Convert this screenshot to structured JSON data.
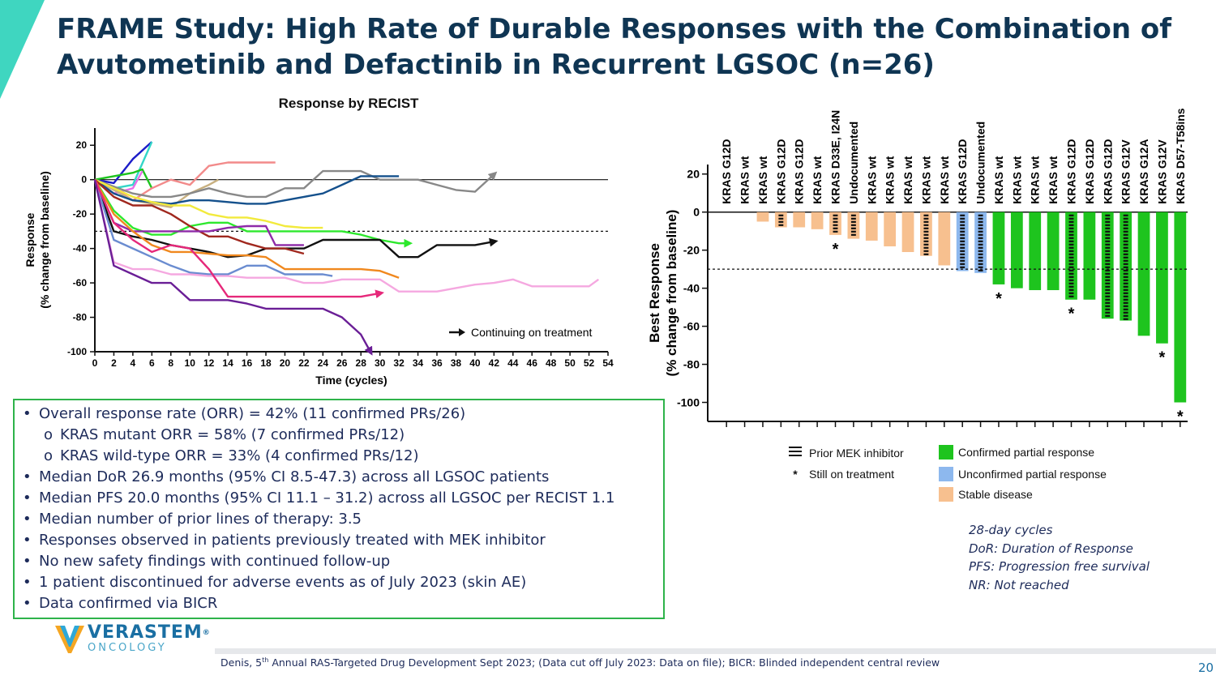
{
  "title": "FRAME Study: High Rate of Durable Responses with the Combination of Avutometinib and Defactinib in Recurrent LGSOC (n=26)",
  "colors": {
    "title": "#0f3553",
    "confirmed": "#1ec41e",
    "unconfirmed": "#8db8ee",
    "stable": "#f7c08f",
    "box_border": "#2eb34a"
  },
  "chart_data": [
    {
      "type": "line",
      "title": "Response by RECIST",
      "xlabel": "Time (cycles)",
      "ylabel_line1": "Response",
      "ylabel_line2": "(% change from baseline)",
      "xlim": [
        0,
        54
      ],
      "ylim": [
        -100,
        30
      ],
      "x_ticks": [
        0,
        2,
        4,
        6,
        8,
        10,
        12,
        14,
        16,
        18,
        20,
        22,
        24,
        26,
        28,
        30,
        32,
        34,
        36,
        38,
        40,
        42,
        44,
        46,
        48,
        50,
        52,
        54
      ],
      "y_ticks": [
        20,
        0,
        -20,
        -40,
        -60,
        -80,
        -100
      ],
      "reference_lines": [
        0,
        -30
      ],
      "legend_text": "Continuing on treatment",
      "series": [
        {
          "color": "#1c1cc8",
          "x": [
            0,
            2,
            4,
            6
          ],
          "y": [
            0,
            -2,
            12,
            22
          ],
          "arrow": false
        },
        {
          "color": "#33d6c8",
          "x": [
            0,
            2,
            4,
            6
          ],
          "y": [
            0,
            -5,
            -3,
            22
          ],
          "arrow": false
        },
        {
          "color": "#1ec41e",
          "x": [
            0,
            2,
            4,
            5,
            6
          ],
          "y": [
            0,
            2,
            4,
            6,
            -5
          ],
          "arrow": false
        },
        {
          "color": "#f28a8a",
          "x": [
            0,
            2,
            4,
            6,
            8,
            10,
            12,
            14,
            16,
            18,
            19
          ],
          "y": [
            0,
            -5,
            -12,
            -5,
            0,
            -3,
            8,
            10,
            10,
            10,
            10
          ],
          "arrow": false
        },
        {
          "color": "#e86fe8",
          "x": [
            0,
            2,
            4,
            5
          ],
          "y": [
            0,
            -8,
            -5,
            5
          ],
          "arrow": false
        },
        {
          "color": "#c8b080",
          "x": [
            0,
            2,
            4,
            6,
            8,
            10,
            12,
            13
          ],
          "y": [
            0,
            -6,
            -12,
            -14,
            -16,
            -8,
            -3,
            0
          ],
          "arrow": false
        },
        {
          "color": "#888888",
          "x": [
            0,
            2,
            4,
            6,
            8,
            10,
            12,
            14,
            16,
            18,
            20,
            22,
            24,
            26,
            28,
            30,
            32,
            34,
            36,
            38,
            40,
            42
          ],
          "y": [
            0,
            -4,
            -8,
            -10,
            -10,
            -8,
            -5,
            -8,
            -10,
            -10,
            -5,
            -5,
            5,
            5,
            5,
            0,
            0,
            0,
            -3,
            -6,
            -7,
            3
          ],
          "arrow": true
        },
        {
          "color": "#14508c",
          "x": [
            0,
            2,
            4,
            6,
            8,
            10,
            12,
            14,
            16,
            18,
            20,
            22,
            24,
            26,
            28,
            30,
            32
          ],
          "y": [
            0,
            -8,
            -12,
            -13,
            -14,
            -12,
            -12,
            -13,
            -14,
            -14,
            -12,
            -10,
            -8,
            -3,
            2,
            2,
            2
          ],
          "arrow": false
        },
        {
          "color": "#f2ea3c",
          "x": [
            0,
            2,
            4,
            6,
            8,
            10,
            12,
            14,
            16,
            18,
            20,
            22,
            24
          ],
          "y": [
            0,
            -5,
            -10,
            -13,
            -15,
            -15,
            -20,
            -22,
            -22,
            -24,
            -27,
            -28,
            -28
          ],
          "arrow": false
        },
        {
          "color": "#2de82d",
          "x": [
            0,
            2,
            4,
            6,
            8,
            10,
            12,
            14,
            16,
            18,
            20,
            22,
            24,
            26,
            28,
            30,
            32,
            33
          ],
          "y": [
            0,
            -18,
            -28,
            -32,
            -32,
            -27,
            -25,
            -25,
            -30,
            -30,
            -30,
            -30,
            -30,
            -30,
            -32,
            -35,
            -37,
            -37
          ],
          "arrow": true
        },
        {
          "color": "#111111",
          "x": [
            0,
            2,
            4,
            6,
            8,
            10,
            12,
            14,
            16,
            18,
            20,
            22,
            24,
            26,
            28,
            30,
            32,
            34,
            36,
            38,
            40,
            42
          ],
          "y": [
            0,
            -30,
            -33,
            -35,
            -38,
            -40,
            -42,
            -45,
            -44,
            -40,
            -40,
            -40,
            -35,
            -35,
            -35,
            -35,
            -45,
            -45,
            -38,
            -38,
            -38,
            -36
          ],
          "arrow": true
        },
        {
          "color": "#a0281e",
          "x": [
            0,
            2,
            4,
            6,
            8,
            10,
            12,
            14,
            16,
            18,
            20,
            22
          ],
          "y": [
            0,
            -10,
            -15,
            -15,
            -20,
            -27,
            -33,
            -33,
            -37,
            -40,
            -40,
            -43
          ],
          "arrow": false
        },
        {
          "color": "#8e2aa8",
          "x": [
            0,
            2,
            4,
            6,
            8,
            10,
            12,
            14,
            16,
            18,
            19,
            20,
            22
          ],
          "y": [
            0,
            -25,
            -30,
            -30,
            -30,
            -30,
            -30,
            -28,
            -27,
            -27,
            -38,
            -38,
            -38
          ],
          "arrow": false
        },
        {
          "color": "#f0881e",
          "x": [
            0,
            2,
            4,
            6,
            8,
            10,
            12,
            14,
            16,
            18,
            20,
            22,
            24,
            26,
            28,
            30,
            32
          ],
          "y": [
            0,
            -20,
            -30,
            -38,
            -42,
            -42,
            -43,
            -44,
            -44,
            -45,
            -52,
            -52,
            -52,
            -52,
            -52,
            -53,
            -57
          ],
          "arrow": false
        },
        {
          "color": "#6a8cd0",
          "x": [
            0,
            2,
            4,
            6,
            8,
            10,
            12,
            14,
            16,
            18,
            20,
            22,
            24,
            25
          ],
          "y": [
            0,
            -35,
            -40,
            -45,
            -50,
            -54,
            -55,
            -55,
            -50,
            -50,
            -55,
            -55,
            -55,
            -56
          ],
          "arrow": false
        },
        {
          "color": "#f5a8e0",
          "x": [
            0,
            2,
            4,
            6,
            8,
            10,
            12,
            14,
            16,
            18,
            20,
            22,
            24,
            26,
            28,
            30,
            32,
            34,
            36,
            38,
            40,
            42,
            44,
            46,
            48,
            50,
            52,
            53
          ],
          "y": [
            0,
            -48,
            -52,
            -52,
            -55,
            -55,
            -56,
            -56,
            -57,
            -57,
            -57,
            -60,
            -60,
            -58,
            -58,
            -58,
            -65,
            -65,
            -65,
            -63,
            -61,
            -60,
            -58,
            -62,
            -62,
            -62,
            -62,
            -58
          ],
          "arrow": false
        },
        {
          "color": "#e6287a",
          "x": [
            0,
            2,
            4,
            6,
            8,
            10,
            12,
            14,
            16,
            18,
            20,
            22,
            24,
            26,
            28,
            30
          ],
          "y": [
            0,
            -25,
            -35,
            -42,
            -38,
            -40,
            -52,
            -68,
            -68,
            -68,
            -68,
            -68,
            -68,
            -68,
            -68,
            -66
          ],
          "arrow": true
        },
        {
          "color": "#6a1e96",
          "x": [
            0,
            2,
            4,
            6,
            8,
            10,
            12,
            14,
            16,
            18,
            20,
            22,
            24,
            26,
            28,
            29
          ],
          "y": [
            0,
            -50,
            -55,
            -60,
            -60,
            -70,
            -70,
            -70,
            -72,
            -75,
            -75,
            -75,
            -75,
            -80,
            -90,
            -100
          ],
          "arrow": true
        }
      ]
    },
    {
      "type": "bar",
      "ylabel_line1": "Best  Response",
      "ylabel_line2": "(% change from baseline)",
      "ylim": [
        -110,
        25
      ],
      "y_ticks": [
        20,
        0,
        -20,
        -40,
        -60,
        -80,
        -100
      ],
      "reference_line": -30,
      "categories": [
        "KRAS G12D",
        "KRAS wt",
        "KRAS wt",
        "KRAS G12D",
        "KRAS G12D",
        "KRAS wt",
        "KRAS D33E, I24N",
        "Undocumented",
        "KRAS wt",
        "KRAS wt",
        "KRAS wt",
        "KRAS wt",
        "KRAS wt",
        "KRAS G12D",
        "Undocumented",
        "KRAS wt",
        "KRAS wt",
        "KRAS wt",
        "KRAS wt",
        "KRAS G12D",
        "KRAS G12D",
        "KRAS G12D",
        "KRAS G12V",
        "KRAS G12A",
        "KRAS G12V",
        "KRAS D57-T58ins"
      ],
      "values": [
        0,
        0,
        -5,
        -8,
        -8,
        -9,
        -12,
        -14,
        -15,
        -18,
        -21,
        -23,
        -28,
        -31,
        -32,
        -38,
        -40,
        -41,
        -41,
        -46,
        -46,
        -56,
        -57,
        -65,
        -69,
        -100
      ],
      "status": [
        "stable",
        "stable",
        "stable",
        "stable",
        "stable",
        "stable",
        "stable",
        "stable",
        "stable",
        "stable",
        "stable",
        "stable",
        "stable",
        "unconfirmed",
        "unconfirmed",
        "confirmed",
        "confirmed",
        "confirmed",
        "confirmed",
        "confirmed",
        "confirmed",
        "confirmed",
        "confirmed",
        "confirmed",
        "confirmed",
        "confirmed"
      ],
      "prior_mek": [
        false,
        false,
        false,
        true,
        false,
        false,
        true,
        true,
        false,
        false,
        false,
        true,
        false,
        true,
        true,
        false,
        false,
        false,
        false,
        true,
        false,
        true,
        true,
        false,
        false,
        false
      ],
      "on_treatment": [
        false,
        false,
        false,
        false,
        false,
        false,
        true,
        false,
        false,
        false,
        false,
        false,
        false,
        false,
        false,
        true,
        false,
        false,
        false,
        true,
        false,
        false,
        false,
        false,
        true,
        true
      ],
      "legend": {
        "prior_mek": "Prior MEK inhibitor",
        "still_on": "Still on treatment",
        "confirmed": "Confirmed partial response",
        "unconfirmed": "Unconfirmed partial response",
        "stable": "Stable disease"
      }
    }
  ],
  "bullets": [
    {
      "text": "Overall response rate (ORR) = 42% (11 confirmed PRs/26)",
      "sub": false
    },
    {
      "text": "KRAS mutant ORR = 58% (7 confirmed PRs/12)",
      "sub": true
    },
    {
      "text": "KRAS wild-type ORR = 33% (4 confirmed PRs/12)",
      "sub": true
    },
    {
      "text": "Median DoR 26.9 months (95% CI 8.5-47.3) across all LGSOC patients",
      "sub": false
    },
    {
      "text": "Median PFS 20.0 months (95% CI 11.1 – 31.2) across all LGSOC per RECIST 1.1",
      "sub": false
    },
    {
      "text": "Median number of prior lines of therapy: 3.5",
      "sub": false
    },
    {
      "text": "Responses observed in patients previously treated with MEK inhibitor",
      "sub": false
    },
    {
      "text": "No new safety findings with continued follow-up",
      "sub": false
    },
    {
      "text": "1 patient discontinued for adverse events as of July 2023 (skin AE)",
      "sub": false
    },
    {
      "text": "Data confirmed via BICR",
      "sub": false
    }
  ],
  "bullet_marker": "•",
  "sub_marker": "o",
  "definitions": [
    "28-day cycles",
    "DoR: Duration of Response",
    "PFS: Progression free survival",
    "NR: Not reached"
  ],
  "logo": {
    "name": "VERASTEM",
    "tm": "®",
    "sub": "ONCOLOGY"
  },
  "footer": {
    "pre": "Denis, 5",
    "sup": "th",
    "post": " Annual RAS-Targeted Drug Development Sept 2023; (Data cut off July 2023: Data on file); BICR: Blinded independent central review"
  },
  "page_number": "20"
}
